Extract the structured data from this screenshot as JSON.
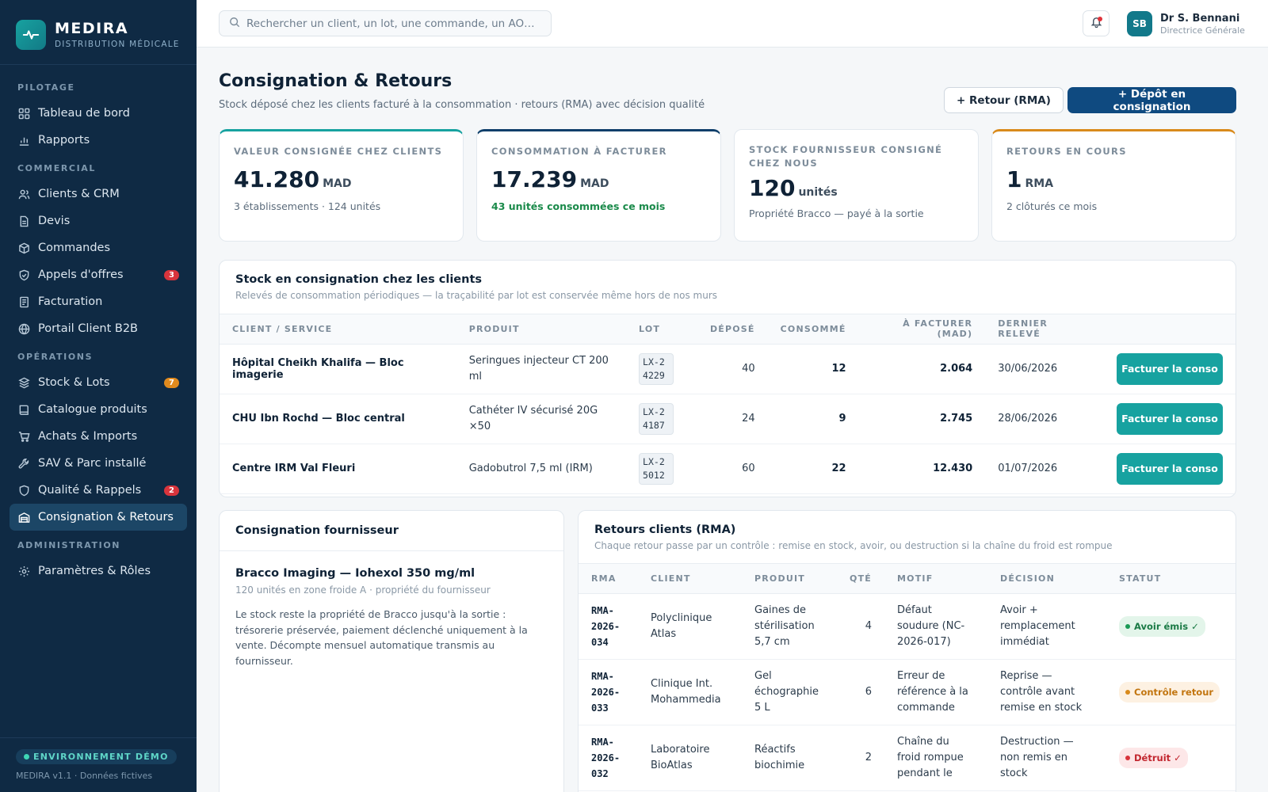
{
  "brand": {
    "name": "MEDIRA",
    "sub": "DISTRIBUTION MÉDICALE"
  },
  "sidebar": {
    "sections": [
      {
        "title": "PILOTAGE",
        "items": [
          {
            "label": "Tableau de bord",
            "icon": "grid-icon"
          },
          {
            "label": "Rapports",
            "icon": "bar-chart-icon"
          }
        ]
      },
      {
        "title": "COMMERCIAL",
        "items": [
          {
            "label": "Clients & CRM",
            "icon": "users-icon"
          },
          {
            "label": "Devis",
            "icon": "document-icon"
          },
          {
            "label": "Commandes",
            "icon": "box-icon"
          },
          {
            "label": "Appels d'offres",
            "icon": "shield-check-icon",
            "badge": "3"
          },
          {
            "label": "Facturation",
            "icon": "receipt-icon"
          },
          {
            "label": "Portail Client B2B",
            "icon": "globe-icon"
          }
        ]
      },
      {
        "title": "OPÉRATIONS",
        "items": [
          {
            "label": "Stock & Lots",
            "icon": "layers-icon",
            "badge": "7"
          },
          {
            "label": "Catalogue produits",
            "icon": "book-icon"
          },
          {
            "label": "Achats & Imports",
            "icon": "cart-icon"
          },
          {
            "label": "SAV & Parc installé",
            "icon": "wrench-icon"
          },
          {
            "label": "Qualité & Rappels",
            "icon": "shield-icon",
            "badge": "2"
          },
          {
            "label": "Consignation & Retours",
            "icon": "warehouse-icon"
          }
        ]
      },
      {
        "title": "ADMINISTRATION",
        "items": [
          {
            "label": "Paramètres & Rôles",
            "icon": "gear-icon"
          }
        ]
      }
    ],
    "footer": {
      "env": "ENVIRONNEMENT DÉMO",
      "version": "MEDIRA v1.1 · Données fictives"
    }
  },
  "topbar": {
    "search_placeholder": "Rechercher un client, un lot, une commande, un AO…",
    "user": {
      "initials": "SB",
      "name": "Dr S. Bennani",
      "role": "Directrice Générale"
    }
  },
  "page": {
    "title": "Consignation & Retours",
    "subtitle": "Stock déposé chez les clients facturé à la consommation · retours (RMA) avec décision qualité",
    "btn_return": "+ Retour (RMA)",
    "btn_deposit": "+ Dépôt en consignation"
  },
  "kpis": [
    {
      "label": "VALEUR CONSIGNÉE CHEZ CLIENTS",
      "value": "41.280",
      "unit": "MAD",
      "sub": "3 établissements · 124 unités"
    },
    {
      "label": "CONSOMMATION À FACTURER",
      "value": "17.239",
      "unit": "MAD",
      "sub": "43 unités consommées ce mois"
    },
    {
      "label": "STOCK FOURNISSEUR CONSIGNÉ CHEZ NOUS",
      "value": "120",
      "unit": "unités",
      "sub": "Propriété Bracco — payé à la sortie"
    },
    {
      "label": "RETOURS EN COURS",
      "value": "1",
      "unit": "RMA",
      "sub": "2 clôturés ce mois"
    }
  ],
  "consign": {
    "title": "Stock en consignation chez les clients",
    "subtitle": "Relevés de consommation périodiques — la traçabilité par lot est conservée même hors de nos murs",
    "headers": [
      "CLIENT / SERVICE",
      "PRODUIT",
      "LOT",
      "DÉPOSÉ",
      "CONSOMMÉ",
      "À FACTURER (MAD)",
      "DERNIER RELEVÉ"
    ],
    "button_label": "Facturer la conso",
    "rows": [
      {
        "client": "Hôpital Cheikh Khalifa — Bloc imagerie",
        "product": "Seringues injecteur CT 200 ml",
        "lot": "LX-24229",
        "deposited": "40",
        "consumed": "12",
        "amount": "2.064",
        "date": "30/06/2026"
      },
      {
        "client": "CHU Ibn Rochd — Bloc central",
        "product": "Cathéter IV sécurisé 20G ×50",
        "lot": "LX-24187",
        "deposited": "24",
        "consumed": "9",
        "amount": "2.745",
        "date": "28/06/2026"
      },
      {
        "client": "Centre IRM Val Fleuri",
        "product": "Gadobutrol 7,5 ml (IRM)",
        "lot": "LX-25012",
        "deposited": "60",
        "consumed": "22",
        "amount": "12.430",
        "date": "01/07/2026"
      }
    ]
  },
  "supplier": {
    "title": "Consignation fournisseur",
    "item_title": "Bracco Imaging — Iohexol 350 mg/ml",
    "item_meta": "120 unités en zone froide A · propriété du fournisseur",
    "text": "Le stock reste la propriété de Bracco jusqu'à la sortie : trésorerie préservée, paiement déclenché uniquement à la vente. Décompte mensuel automatique transmis au fournisseur."
  },
  "rma": {
    "title": "Retours clients (RMA)",
    "subtitle": "Chaque retour passe par un contrôle : remise en stock, avoir, ou destruction si la chaîne du froid est rompue",
    "headers": [
      "RMA",
      "CLIENT",
      "PRODUIT",
      "QTÉ",
      "MOTIF",
      "DÉCISION",
      "STATUT"
    ],
    "rows": [
      {
        "id": "RMA-2026-034",
        "client": "Polyclinique Atlas",
        "product": "Gaines de stérilisation 5,7 cm",
        "qty": "4",
        "reason": "Défaut soudure (NC-2026-017)",
        "decision": "Avoir + remplacement immédiat",
        "status": "Avoir émis ✓",
        "status_color": "green"
      },
      {
        "id": "RMA-2026-033",
        "client": "Clinique Int. Mohammedia",
        "product": "Gel échographie 5 L",
        "qty": "6",
        "reason": "Erreur de référence à la commande",
        "decision": "Reprise — contrôle avant remise en stock",
        "status": "Contrôle retour",
        "status_color": "orange"
      },
      {
        "id": "RMA-2026-032",
        "client": "Laboratoire BioAtlas",
        "product": "Réactifs biochimie",
        "qty": "2",
        "reason": "Chaîne du froid rompue pendant le",
        "decision": "Destruction — non remis en stock",
        "status": "Détruit ✓",
        "status_color": "red"
      }
    ]
  },
  "colors": {
    "sidebar": "#0f2a44",
    "accent_teal": "#17a2a0",
    "primary": "#0f4a80",
    "badge_red": "#d8343c",
    "badge_orange": "#e08a1e"
  }
}
